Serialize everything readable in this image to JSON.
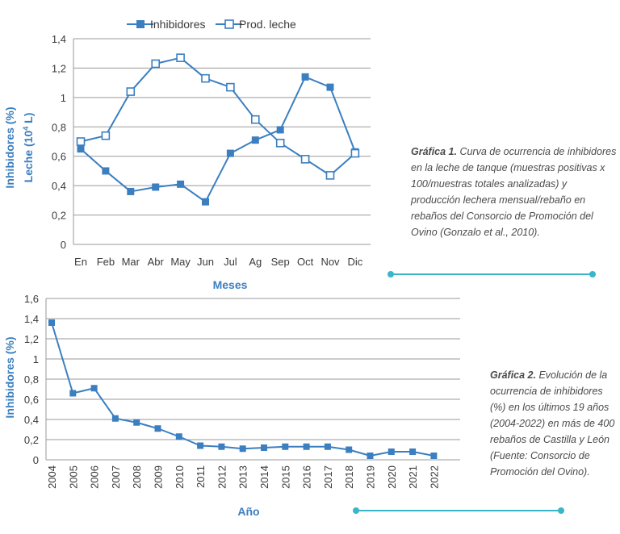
{
  "colors": {
    "series": "#3b7fc0",
    "axis_title": "#3b7fc0",
    "grid": "#9a9a9a",
    "accent_rule": "#39b6c8"
  },
  "chart_data": [
    {
      "type": "line",
      "legend": {
        "inhibidores": "Inhibidores",
        "leche": "Prod. leche",
        "placement": "top"
      },
      "xlabel": "Meses",
      "ylabel_line1": "Inhibidores (%)",
      "ylabel_line2": "Leche (10",
      "ylabel_sup": "4",
      "ylabel_tail": " L)",
      "categories": [
        "En",
        "Feb",
        "Mar",
        "Abr",
        "May",
        "Jun",
        "Jul",
        "Ag",
        "Sep",
        "Oct",
        "Nov",
        "Dic"
      ],
      "yticks": [
        "0",
        "0,2",
        "0,4",
        "0,6",
        "0,8",
        "1",
        "1,2",
        "1,4"
      ],
      "ylim": [
        0,
        1.4
      ],
      "grid": true,
      "series": [
        {
          "name": "Inhibidores",
          "marker": "filled-square",
          "values": [
            0.65,
            0.5,
            0.36,
            0.39,
            0.41,
            0.29,
            0.62,
            0.71,
            0.78,
            1.14,
            1.07,
            0.63
          ]
        },
        {
          "name": "Prod. leche",
          "marker": "open-square",
          "values": [
            0.7,
            0.74,
            1.04,
            1.23,
            1.27,
            1.13,
            1.07,
            0.85,
            0.69,
            0.58,
            0.47,
            0.62
          ]
        }
      ]
    },
    {
      "type": "line",
      "xlabel": "Año",
      "ylabel": "Inhibidores (%)",
      "categories": [
        "2004",
        "2005",
        "2006",
        "2007",
        "2008",
        "2009",
        "2010",
        "2011",
        "2012",
        "2013",
        "2014",
        "2015",
        "2016",
        "2017",
        "2018",
        "2019",
        "2020",
        "2021",
        "2022"
      ],
      "yticks": [
        "0",
        "0,2",
        "0,4",
        "0,6",
        "0,8",
        "1",
        "1,2",
        "1,4",
        "1,6"
      ],
      "ylim": [
        0,
        1.6
      ],
      "grid": true,
      "series": [
        {
          "name": "Inhibidores",
          "marker": "filled-square",
          "values": [
            1.36,
            0.66,
            0.71,
            0.41,
            0.37,
            0.31,
            0.23,
            0.14,
            0.13,
            0.11,
            0.12,
            0.13,
            0.13,
            0.13,
            0.1,
            0.04,
            0.08,
            0.08,
            0.04
          ]
        }
      ]
    }
  ],
  "captions": {
    "graf1_title": "Gráfica 1.",
    "graf1_text": " Curva de ocurrencia de inhibidores en la leche de tanque (muestras positivas x 100/muestras totales analizadas) y producción lechera mensual/rebaño en rebaños del Consorcio de Promoción del Ovino (Gonzalo et al., 2010).",
    "graf2_title": "Gráfica 2.",
    "graf2_text": " Evolución de la ocurrencia de inhibidores (%) en los últimos 19 años (2004-2022) en más de 400 rebaños de Castilla y León (Fuente: Consorcio de Promoción del Ovino)."
  }
}
